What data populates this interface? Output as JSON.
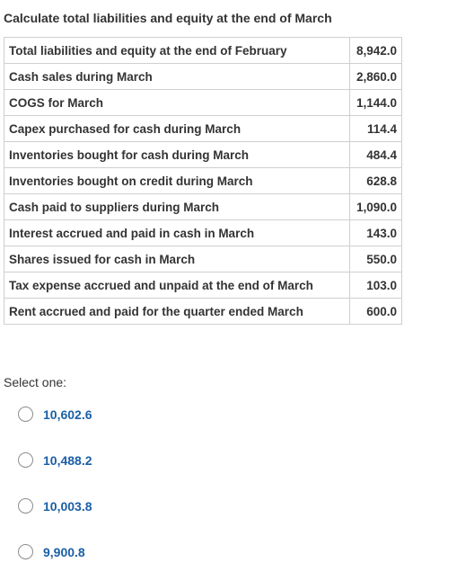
{
  "question": {
    "title": "Calculate total liabilities and equity at the end of March"
  },
  "table": {
    "rows": [
      {
        "label": "Total liabilities and equity at the end of February",
        "value": "8,942.0"
      },
      {
        "label": "Cash sales during March",
        "value": "2,860.0"
      },
      {
        "label": "COGS for March",
        "value": "1,144.0"
      },
      {
        "label": "Capex purchased for cash during March",
        "value": "114.4"
      },
      {
        "label": "Inventories bought for cash during March",
        "value": "484.4"
      },
      {
        "label": "Inventories bought on credit during March",
        "value": "628.8"
      },
      {
        "label": "Cash paid to suppliers during March",
        "value": "1,090.0"
      },
      {
        "label": "Interest accrued and paid in cash in March",
        "value": "143.0"
      },
      {
        "label": "Shares issued for cash in March",
        "value": "550.0"
      },
      {
        "label": "Tax expense accrued and unpaid at the end of March",
        "value": "103.0"
      },
      {
        "label": "Rent accrued and paid for the quarter ended March",
        "value": "600.0"
      }
    ]
  },
  "answer": {
    "prompt": "Select one:",
    "options": [
      {
        "label": "10,602.6",
        "selected": false
      },
      {
        "label": "10,488.2",
        "selected": false
      },
      {
        "label": "10,003.8",
        "selected": false
      },
      {
        "label": "9,900.8",
        "selected": false
      }
    ]
  },
  "colors": {
    "option_text": "#1a5fa6",
    "body_text": "#333333",
    "table_border": "#cfcfcf"
  }
}
